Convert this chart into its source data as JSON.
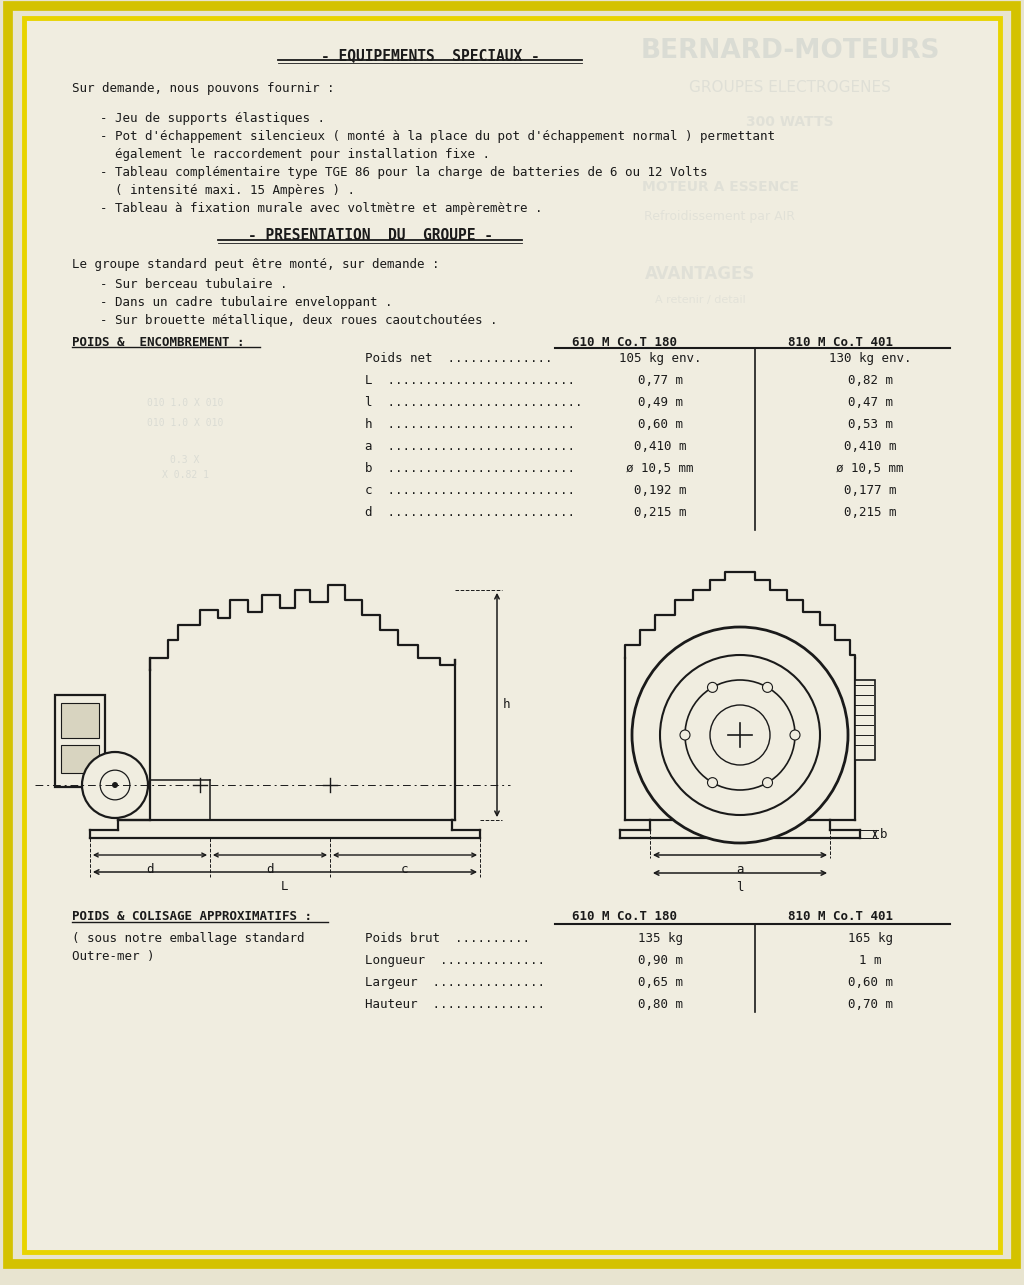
{
  "bg_outer": "#e8e4d0",
  "bg_inner": "#f0ede0",
  "border_yellow": "#d4c200",
  "border_inner_yellow": "#e8d400",
  "title1": "- EQUIPEMENTS  SPECIAUX -",
  "section1_intro": "Sur demande, nous pouvons fournir :",
  "bullet1_1": "- Jeu de supports élastiques .",
  "bullet1_2": "- Pot d'échappement silencieux ( monté à la place du pot d'échappement normal ) permettant",
  "bullet1_2b": "  également le raccordement pour installation fixe .",
  "bullet1_3": "- Tableau complémentaire type TGE 86 pour la charge de batteries de 6 ou 12 Volts",
  "bullet1_3b": "  ( intensité maxi. 15 Ampères ) .",
  "bullet1_4": "- Tableau à fixation murale avec voltmètre et ampèremètre .",
  "title2": "- PRESENTATION  DU  GROUPE -",
  "section2_intro": "Le groupe standard peut être monté, sur demande :",
  "bullet2_1": "- Sur berceau tubulaire .",
  "bullet2_2": "- Dans un cadre tubulaire enveloppant .",
  "bullet2_3": "- Sur brouette métallique, deux roues caoutchoutées .",
  "table1_label": "POIDS &  ENCOMBREMENT :",
  "col1": "610 M Co.T 180",
  "col2": "810 M Co.T 401",
  "rows1": [
    [
      "Poids net  ..............",
      "105 kg env.",
      "130 kg env."
    ],
    [
      "L  .........................",
      "0,77 m",
      "0,82 m"
    ],
    [
      "l  ..........................",
      "0,49 m",
      "0,47 m"
    ],
    [
      "h  .........................",
      "0,60 m",
      "0,53 m"
    ],
    [
      "a  .........................",
      "0,410 m",
      "0,410 m"
    ],
    [
      "b  .........................",
      "ø 10,5 mm",
      "ø 10,5 mm"
    ],
    [
      "c  .........................",
      "0,192 m",
      "0,177 m"
    ],
    [
      "d  .........................",
      "0,215 m",
      "0,215 m"
    ]
  ],
  "table2_label": "POIDS & COLISAGE APPROXIMATIFS :",
  "table2_note": "( sous notre emballage standard",
  "table2_note2": "Outre-mer )",
  "rows2": [
    [
      "Poids brut  ..........",
      "135 kg",
      "165 kg"
    ],
    [
      "Longueur  ..............",
      "0,90 m",
      "1 m"
    ],
    [
      "Largeur  ...............",
      "0,65 m",
      "0,60 m"
    ],
    [
      "Hauteur  ...............",
      "0,80 m",
      "0,70 m"
    ]
  ],
  "tc": "#1a1a1a",
  "lc": "#1a1a1a",
  "fade1": "#7a8fa0",
  "fade2": "#9aafb8"
}
